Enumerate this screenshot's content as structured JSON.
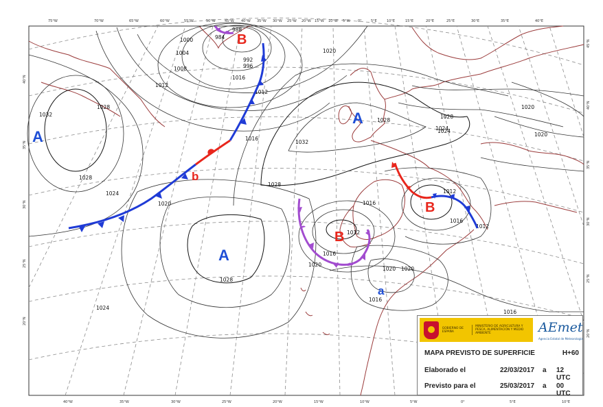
{
  "lon_labels_top": [
    "75°W",
    "70°W",
    "65°W",
    "60°W",
    "55°W",
    "50°W",
    "45°W",
    "40°W",
    "35°W",
    "30°W",
    "25°W",
    "20°W",
    "15°W",
    "10°W",
    "5°W",
    "0°",
    "5°E",
    "10°E",
    "15°E",
    "20°E",
    "25°E",
    "30°E",
    "35°E",
    "40°E"
  ],
  "lon_labels_bottom": [
    "40°W",
    "35°W",
    "30°W",
    "25°W",
    "20°W",
    "15°W",
    "10°W",
    "5°W",
    "0°",
    "5°E",
    "10°E"
  ],
  "lat_labels_left": [
    "40°N",
    "35°N",
    "30°N",
    "25°N",
    "20°N"
  ],
  "lat_labels_right": [
    "45°N",
    "40°N",
    "35°N",
    "30°N",
    "25°N",
    "20°N"
  ],
  "pressure_centers": [
    {
      "label": "A",
      "color": "#1f4fd6"
    },
    {
      "label": "A",
      "color": "#1f4fd6"
    },
    {
      "label": "A",
      "color": "#1f4fd6"
    },
    {
      "label": "B",
      "color": "#e8261c"
    },
    {
      "label": "B",
      "color": "#e8261c"
    },
    {
      "label": "B",
      "color": "#e8261c"
    },
    {
      "label": "b",
      "color": "#e8261c"
    },
    {
      "label": "a",
      "color": "#1f4fd6"
    }
  ],
  "isobar_labels": [
    "1028",
    "1032",
    "1028",
    "1024",
    "1020",
    "1016",
    "1012",
    "1008",
    "1004",
    "1000",
    "996",
    "992",
    "988",
    "984",
    "1012",
    "1020",
    "1016",
    "1032",
    "1024",
    "1028",
    "1028",
    "1028",
    "1012",
    "1016",
    "1020",
    "1020",
    "1016",
    "1016",
    "1012",
    "1016",
    "1016",
    "1020",
    "1020",
    "1024",
    "1028",
    "1024",
    "1020",
    "1012"
  ],
  "fronts": {
    "cold_color": "#1f3bd6",
    "warm_color": "#e8261c",
    "occluded_color": "#a24ccf"
  },
  "info": {
    "government": "GOBIERNO DE ESPAÑA",
    "ministry": "MINISTERIO DE AGRICULTURA Y PESCA, ALIMENTACIÓN Y MEDIO AMBIENTE",
    "brand": "AEmet",
    "brand_sub": "Agencia Estatal de Meteorología",
    "title": "MAPA PREVISTO DE SUPERFICIE",
    "lead": "H+60",
    "elaborated_label": "Elaborado el",
    "elaborated_date": "22/03/2017",
    "elaborated_a": "a",
    "elaborated_time": "12 UTC",
    "valid_label": "Previsto para el",
    "valid_date": "25/03/2017",
    "valid_a": "a",
    "valid_time": "00 UTC"
  }
}
